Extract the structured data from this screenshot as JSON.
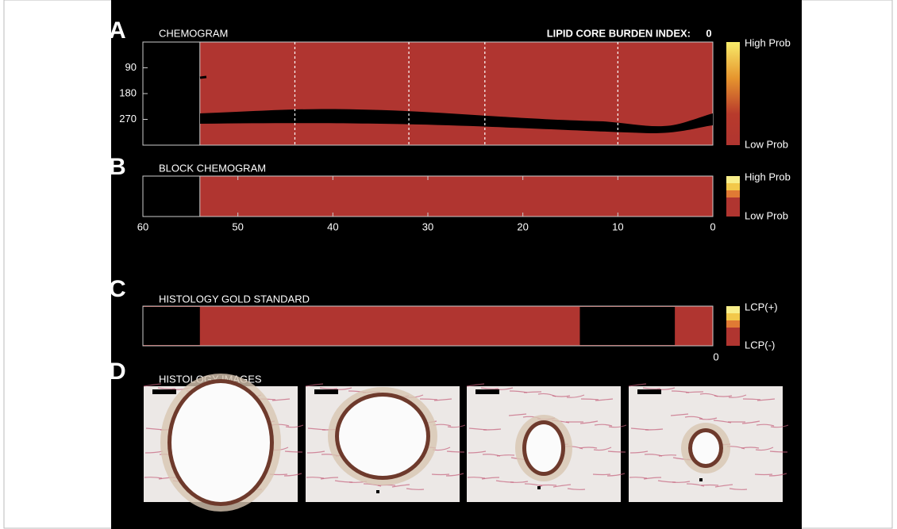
{
  "panels": [
    {
      "letter": "A",
      "title": "CHEMOGRAM",
      "annotation": "LIPID CORE BURDEN INDEX:",
      "lcbi": 0,
      "yticks": [
        90,
        180,
        270
      ],
      "ylim": [
        0,
        360
      ],
      "xlim": [
        60,
        0
      ],
      "no_data_end": 54,
      "section_positions": [
        44,
        32,
        24,
        10
      ],
      "colorbar": [
        "High Prob",
        "Low Prob"
      ]
    },
    {
      "letter": "B",
      "title": "BLOCK CHEMOGRAM",
      "xlim": [
        60,
        0
      ],
      "no_data_end": 54,
      "xticks": [
        60,
        50,
        40,
        30,
        20,
        10,
        0
      ],
      "colorbar": [
        "High Prob",
        "Low Prob"
      ]
    },
    {
      "letter": "C",
      "title": "HISTOLOGY GOLD STANDARD",
      "xlim": [
        60,
        0
      ],
      "xtick": 0,
      "gaps": [
        [
          60,
          54
        ],
        [
          14,
          4
        ]
      ],
      "colorbar": [
        "LCP(+)",
        "LCP(-)"
      ]
    },
    {
      "letter": "D",
      "title": "HISTOLOGY IMAGES"
    }
  ]
}
